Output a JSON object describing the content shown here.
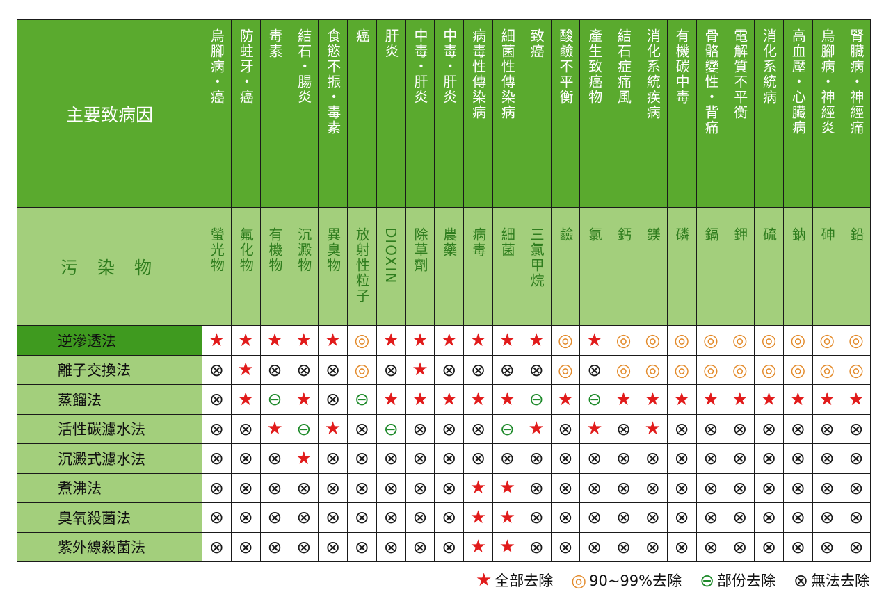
{
  "corner_label": "主要致病因",
  "pollutant_label": "污 染 物",
  "diseases": [
    "烏腳病・癌",
    "防蛀牙・癌",
    "毒素",
    "結石・腸炎",
    "食慾不振・毒素",
    "癌",
    "肝炎",
    "中毒・肝炎",
    "中毒・肝炎",
    "病毒性傳染病",
    "細菌性傳染病",
    "致癌",
    "酸鹼不平衡",
    "產生致癌物",
    "結石症痛風",
    "消化系統疾病",
    "有機碳中毒",
    "骨骼變性・背痛",
    "電解質不平衡",
    "消化系統病",
    "高血壓・心臟病",
    "烏腳病・神經炎",
    "腎臟病・神經痛"
  ],
  "pollutants": [
    "螢光物",
    "氟化物",
    "有機物",
    "沉澱物",
    "異臭物",
    "放射性粒子",
    "DIOXIN",
    "除草劑",
    "農藥",
    "病毒",
    "細菌",
    "三氯甲烷",
    "鹼",
    "氯",
    "鈣",
    "鎂",
    "磷",
    "鎘",
    "鉀",
    "硫",
    "鈉",
    "砷",
    "鉛"
  ],
  "symbols": {
    "full": "★",
    "most": "◎",
    "part": "⊖",
    "none": "⊗"
  },
  "colors": {
    "header_green": "#5aaa2e",
    "light_green": "#a3cf7c",
    "first_row_green": "#3f9a1f",
    "full": "#e11b1b",
    "most": "#e38a2a",
    "part": "#1f8a2b",
    "none": "#1a1a1a"
  },
  "methods": [
    {
      "name": "逆滲透法",
      "cells": [
        "full",
        "full",
        "full",
        "full",
        "full",
        "most",
        "full",
        "full",
        "full",
        "full",
        "full",
        "full",
        "most",
        "full",
        "most",
        "most",
        "most",
        "most",
        "most",
        "most",
        "most",
        "most",
        "most"
      ]
    },
    {
      "name": "離子交換法",
      "cells": [
        "none",
        "full",
        "none",
        "none",
        "none",
        "most",
        "none",
        "full",
        "none",
        "none",
        "none",
        "none",
        "most",
        "none",
        "most",
        "most",
        "most",
        "most",
        "most",
        "most",
        "most",
        "most",
        "most"
      ]
    },
    {
      "name": "蒸餾法",
      "cells": [
        "none",
        "full",
        "part",
        "full",
        "none",
        "part",
        "full",
        "full",
        "full",
        "full",
        "full",
        "part",
        "full",
        "part",
        "full",
        "full",
        "full",
        "full",
        "full",
        "full",
        "full",
        "full",
        "full"
      ]
    },
    {
      "name": "活性碳濾水法",
      "cells": [
        "none",
        "none",
        "full",
        "part",
        "full",
        "none",
        "part",
        "none",
        "none",
        "none",
        "part",
        "full",
        "none",
        "full",
        "none",
        "full",
        "none",
        "none",
        "none",
        "none",
        "none",
        "none",
        "none"
      ]
    },
    {
      "name": "沉澱式濾水法",
      "cells": [
        "none",
        "none",
        "none",
        "full",
        "none",
        "none",
        "none",
        "none",
        "none",
        "none",
        "none",
        "none",
        "none",
        "none",
        "none",
        "none",
        "none",
        "none",
        "none",
        "none",
        "none",
        "none",
        "none"
      ]
    },
    {
      "name": "煮沸法",
      "cells": [
        "none",
        "none",
        "none",
        "none",
        "none",
        "none",
        "none",
        "none",
        "none",
        "full",
        "full",
        "none",
        "none",
        "none",
        "none",
        "none",
        "none",
        "none",
        "none",
        "none",
        "none",
        "none",
        "none"
      ]
    },
    {
      "name": "臭氧殺菌法",
      "cells": [
        "none",
        "none",
        "none",
        "none",
        "none",
        "none",
        "none",
        "none",
        "none",
        "full",
        "full",
        "none",
        "none",
        "none",
        "none",
        "none",
        "none",
        "none",
        "none",
        "none",
        "none",
        "none",
        "none"
      ]
    },
    {
      "name": "紫外線殺菌法",
      "cells": [
        "none",
        "none",
        "none",
        "none",
        "none",
        "none",
        "none",
        "none",
        "none",
        "full",
        "full",
        "none",
        "none",
        "none",
        "none",
        "none",
        "none",
        "none",
        "none",
        "none",
        "none",
        "none",
        "none"
      ]
    }
  ],
  "legend": [
    {
      "key": "full",
      "label": "全部去除"
    },
    {
      "key": "most",
      "label": "90~99%去除"
    },
    {
      "key": "part",
      "label": "部份去除"
    },
    {
      "key": "none",
      "label": "無法去除"
    }
  ]
}
